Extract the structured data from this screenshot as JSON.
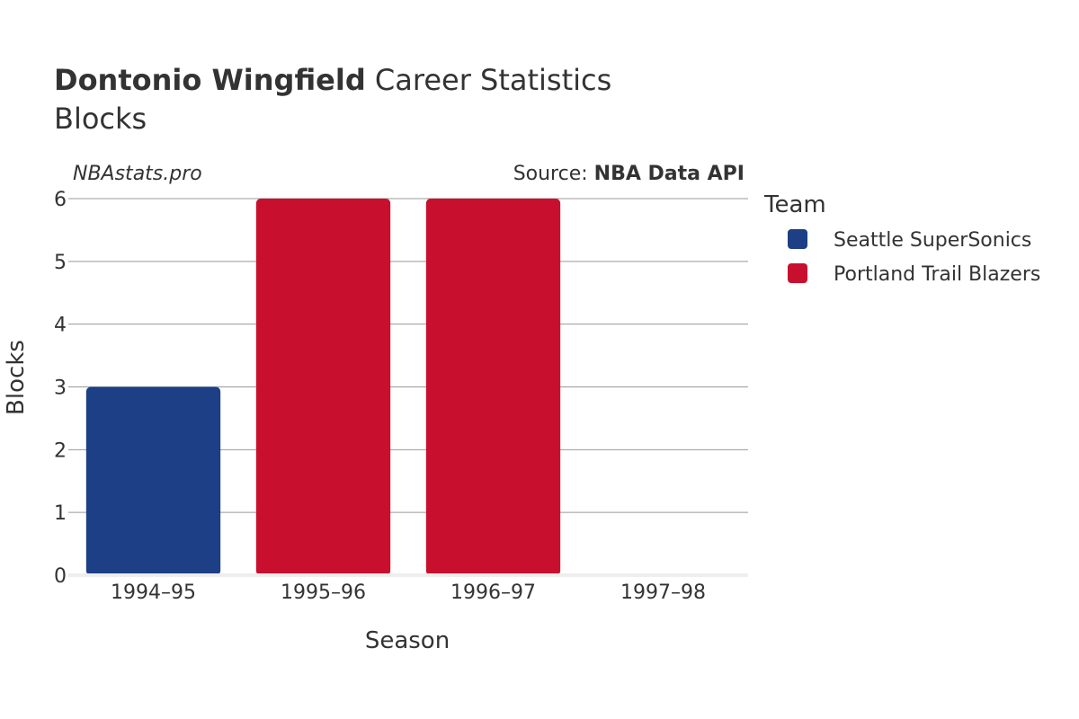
{
  "header": {
    "title_bold": "Dontonio Wingfield",
    "title_rest": " Career Statistics",
    "subtitle": "Blocks",
    "watermark": "NBAstats.pro",
    "source_prefix": "Source: ",
    "source_bold": "NBA Data API"
  },
  "legend": {
    "title": "Team",
    "items": [
      {
        "label": "Seattle SuperSonics",
        "color": "#1c3f86"
      },
      {
        "label": "Portland Trail Blazers",
        "color": "#c8102e"
      }
    ]
  },
  "chart_data": {
    "type": "bar",
    "categories": [
      "1994–95",
      "1995–96",
      "1996–97",
      "1997–98"
    ],
    "series": [
      {
        "name": "Seattle SuperSonics",
        "color": "#1c3f86",
        "values": [
          3,
          0,
          0,
          0
        ]
      },
      {
        "name": "Portland Trail Blazers",
        "color": "#c8102e",
        "values": [
          0,
          6,
          6,
          0
        ]
      }
    ],
    "xlabel": "Season",
    "ylabel": "Blocks",
    "ylim": [
      0,
      6
    ],
    "yticks": [
      0,
      1,
      2,
      3,
      4,
      5,
      6
    ],
    "grid": true,
    "legend_position": "right"
  }
}
